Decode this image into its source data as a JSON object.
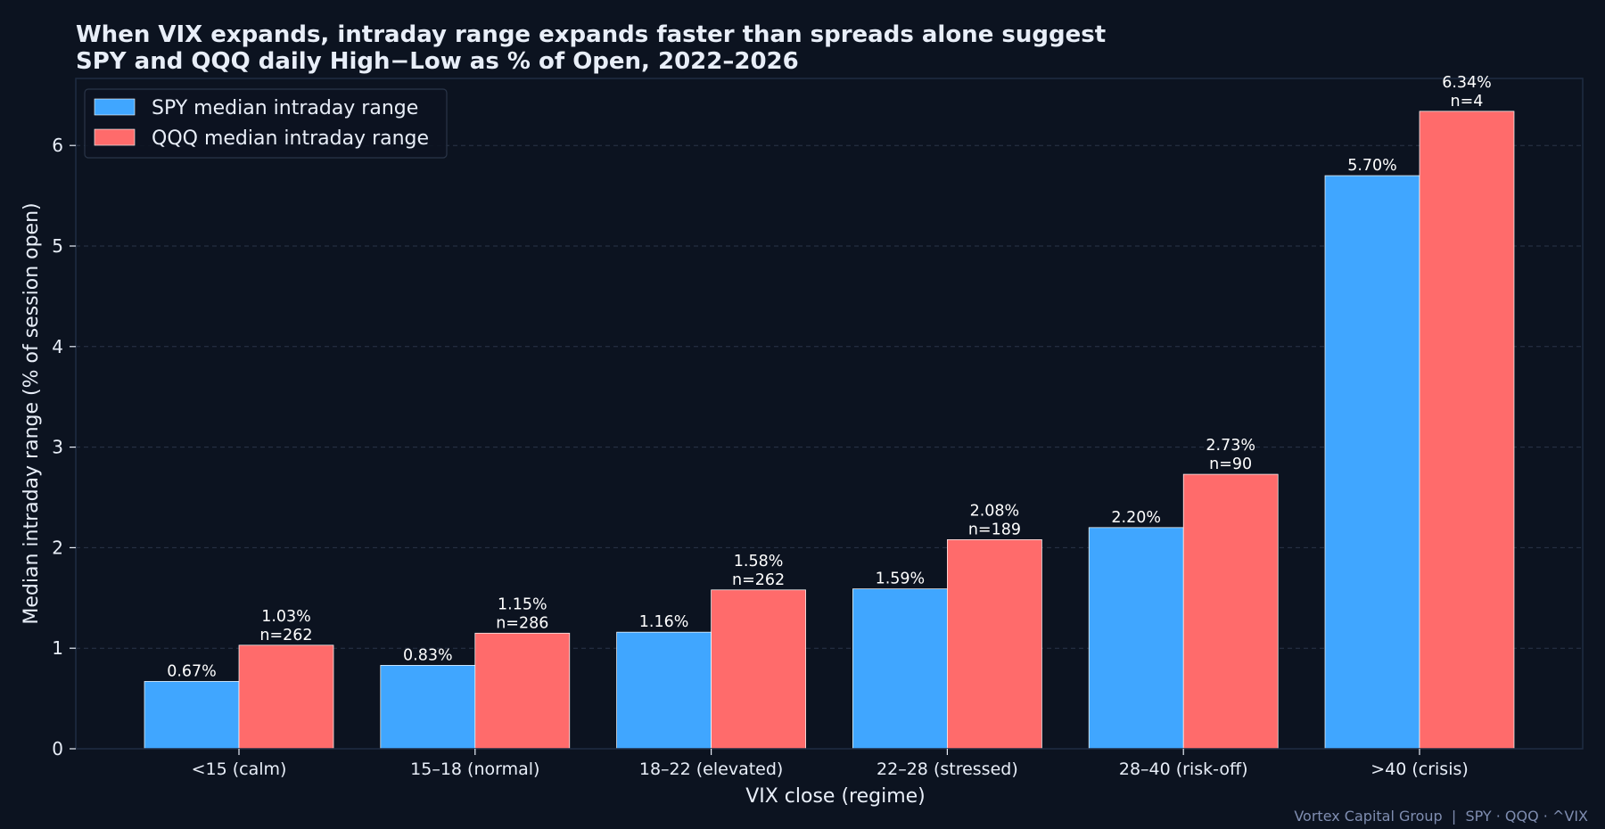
{
  "colors": {
    "background": "#0c1320",
    "spy": "#40a6ff",
    "qqq": "#ff6b6b",
    "text": "#e8eef8",
    "grid": "#2a3548",
    "frame": "#1f2c42",
    "footer": "#7f8db0"
  },
  "chart_data": {
    "type": "bar",
    "title": "When VIX expands, intraday range expands faster than spreads alone suggest",
    "subtitle": "SPY and QQQ daily High−Low as % of Open, 2022–2026",
    "xlabel": "VIX close (regime)",
    "ylabel": "Median intraday range (% of session open)",
    "ylim": [
      0,
      6.65
    ],
    "yticks": [
      0,
      1,
      2,
      3,
      4,
      5,
      6
    ],
    "ytick_labels": [
      "0",
      "1",
      "2",
      "3",
      "4",
      "5",
      "6"
    ],
    "grid": "horizontal dashed",
    "legend_position": "top-left",
    "categories": [
      "<15 (calm)",
      "15–18 (normal)",
      "18–22 (elevated)",
      "22–28 (stressed)",
      "28–40 (risk-off)",
      ">40 (crisis)"
    ],
    "series": [
      {
        "name": "SPY median intraday range",
        "values": [
          0.67,
          0.83,
          1.16,
          1.59,
          2.2,
          5.7
        ],
        "labels": [
          "0.67%",
          "0.83%",
          "1.16%",
          "1.59%",
          "2.20%",
          "5.70%"
        ]
      },
      {
        "name": "QQQ median intraday range",
        "values": [
          1.03,
          1.15,
          1.58,
          2.08,
          2.73,
          6.34
        ],
        "labels": [
          "1.03%",
          "1.15%",
          "1.58%",
          "2.08%",
          "2.73%",
          "6.34%"
        ],
        "counts": [
          "n=262",
          "n=286",
          "n=262",
          "n=189",
          "n=90",
          "n=4"
        ]
      }
    ]
  },
  "footer": "Vortex Capital Group  |  SPY · QQQ · ^VIX"
}
